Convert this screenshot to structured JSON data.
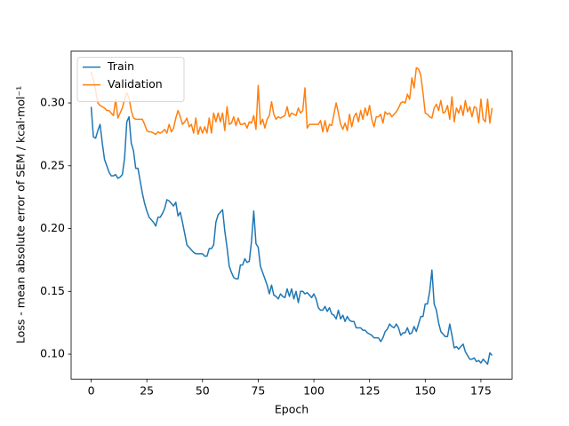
{
  "chart_data": {
    "type": "line",
    "x_label": "Epoch",
    "y_label": "Loss - mean absolute error of SEM / kcal·mol⁻¹",
    "xlim": [
      -9,
      189
    ],
    "ylim": [
      0.0801,
      0.3413
    ],
    "xticks": [
      0,
      25,
      50,
      75,
      100,
      125,
      150,
      175
    ],
    "yticks": [
      {
        "value": 0.1,
        "label": "0.10"
      },
      {
        "value": 0.15,
        "label": "0.15"
      },
      {
        "value": 0.2,
        "label": "0.20"
      },
      {
        "value": 0.25,
        "label": "0.25"
      },
      {
        "value": 0.3,
        "label": "0.30"
      }
    ],
    "legend": "upper left",
    "x": [
      0,
      1,
      2,
      3,
      4,
      5,
      6,
      7,
      8,
      9,
      10,
      11,
      12,
      13,
      14,
      15,
      16,
      17,
      18,
      19,
      20,
      21,
      22,
      23,
      24,
      25,
      26,
      27,
      28,
      29,
      30,
      31,
      32,
      33,
      34,
      35,
      36,
      37,
      38,
      39,
      40,
      41,
      42,
      43,
      44,
      45,
      46,
      47,
      48,
      49,
      50,
      51,
      52,
      53,
      54,
      55,
      56,
      57,
      58,
      59,
      60,
      61,
      62,
      63,
      64,
      65,
      66,
      67,
      68,
      69,
      70,
      71,
      72,
      73,
      74,
      75,
      76,
      77,
      78,
      79,
      80,
      81,
      82,
      83,
      84,
      85,
      86,
      87,
      88,
      89,
      90,
      91,
      92,
      93,
      94,
      95,
      96,
      97,
      98,
      99,
      100,
      101,
      102,
      103,
      104,
      105,
      106,
      107,
      108,
      109,
      110,
      111,
      112,
      113,
      114,
      115,
      116,
      117,
      118,
      119,
      120,
      121,
      122,
      123,
      124,
      125,
      126,
      127,
      128,
      129,
      130,
      131,
      132,
      133,
      134,
      135,
      136,
      137,
      138,
      139,
      140,
      141,
      142,
      143,
      144,
      145,
      146,
      147,
      148,
      149,
      150,
      151,
      152,
      153,
      154,
      155,
      156,
      157,
      158,
      159,
      160,
      161,
      162,
      163,
      164,
      165,
      166,
      167,
      168,
      169,
      170,
      171,
      172,
      173,
      174,
      175,
      176,
      177,
      178,
      179,
      180
    ],
    "series": [
      {
        "name": "Train",
        "color": "#1f77b4",
        "values": [
          0.297,
          0.273,
          0.272,
          0.278,
          0.283,
          0.268,
          0.255,
          0.25,
          0.245,
          0.242,
          0.242,
          0.243,
          0.24,
          0.241,
          0.243,
          0.256,
          0.285,
          0.289,
          0.268,
          0.262,
          0.248,
          0.248,
          0.238,
          0.228,
          0.22,
          0.214,
          0.209,
          0.207,
          0.205,
          0.202,
          0.209,
          0.209,
          0.212,
          0.216,
          0.223,
          0.222,
          0.22,
          0.218,
          0.221,
          0.21,
          0.213,
          0.205,
          0.196,
          0.187,
          0.185,
          0.183,
          0.181,
          0.18,
          0.18,
          0.18,
          0.18,
          0.178,
          0.178,
          0.184,
          0.184,
          0.187,
          0.205,
          0.211,
          0.213,
          0.215,
          0.198,
          0.185,
          0.17,
          0.165,
          0.161,
          0.16,
          0.16,
          0.171,
          0.171,
          0.176,
          0.173,
          0.174,
          0.19,
          0.214,
          0.188,
          0.185,
          0.17,
          0.165,
          0.16,
          0.155,
          0.148,
          0.155,
          0.147,
          0.146,
          0.144,
          0.148,
          0.146,
          0.145,
          0.152,
          0.146,
          0.152,
          0.144,
          0.15,
          0.141,
          0.15,
          0.15,
          0.148,
          0.149,
          0.147,
          0.145,
          0.148,
          0.144,
          0.137,
          0.135,
          0.135,
          0.138,
          0.134,
          0.137,
          0.132,
          0.131,
          0.128,
          0.135,
          0.128,
          0.131,
          0.126,
          0.13,
          0.127,
          0.126,
          0.126,
          0.121,
          0.121,
          0.121,
          0.119,
          0.119,
          0.117,
          0.116,
          0.115,
          0.113,
          0.113,
          0.113,
          0.11,
          0.113,
          0.118,
          0.12,
          0.124,
          0.122,
          0.121,
          0.124,
          0.121,
          0.115,
          0.117,
          0.117,
          0.121,
          0.116,
          0.117,
          0.122,
          0.118,
          0.124,
          0.13,
          0.13,
          0.14,
          0.14,
          0.15,
          0.167,
          0.14,
          0.135,
          0.125,
          0.118,
          0.116,
          0.114,
          0.114,
          0.124,
          0.115,
          0.105,
          0.106,
          0.104,
          0.106,
          0.108,
          0.102,
          0.099,
          0.096,
          0.096,
          0.097,
          0.094,
          0.095,
          0.093,
          0.096,
          0.094,
          0.092,
          0.101,
          0.099
        ]
      },
      {
        "name": "Validation",
        "color": "#ff7f0e",
        "values": [
          0.325,
          0.318,
          0.31,
          0.3,
          0.298,
          0.297,
          0.296,
          0.294,
          0.294,
          0.292,
          0.29,
          0.303,
          0.288,
          0.292,
          0.296,
          0.303,
          0.308,
          0.304,
          0.294,
          0.288,
          0.287,
          0.287,
          0.287,
          0.287,
          0.283,
          0.278,
          0.277,
          0.277,
          0.276,
          0.275,
          0.277,
          0.276,
          0.277,
          0.279,
          0.276,
          0.283,
          0.277,
          0.28,
          0.288,
          0.294,
          0.289,
          0.283,
          0.285,
          0.288,
          0.281,
          0.283,
          0.276,
          0.288,
          0.275,
          0.281,
          0.276,
          0.281,
          0.276,
          0.288,
          0.276,
          0.292,
          0.285,
          0.292,
          0.285,
          0.292,
          0.278,
          0.297,
          0.283,
          0.284,
          0.289,
          0.282,
          0.288,
          0.283,
          0.283,
          0.284,
          0.28,
          0.285,
          0.284,
          0.29,
          0.279,
          0.314,
          0.283,
          0.287,
          0.28,
          0.287,
          0.29,
          0.301,
          0.291,
          0.287,
          0.289,
          0.288,
          0.289,
          0.29,
          0.297,
          0.289,
          0.292,
          0.291,
          0.29,
          0.296,
          0.292,
          0.294,
          0.312,
          0.28,
          0.283,
          0.283,
          0.283,
          0.283,
          0.283,
          0.286,
          0.277,
          0.286,
          0.277,
          0.283,
          0.282,
          0.291,
          0.3,
          0.292,
          0.283,
          0.279,
          0.284,
          0.278,
          0.291,
          0.281,
          0.289,
          0.292,
          0.285,
          0.294,
          0.287,
          0.296,
          0.29,
          0.298,
          0.287,
          0.281,
          0.289,
          0.289,
          0.291,
          0.284,
          0.293,
          0.291,
          0.292,
          0.289,
          0.291,
          0.293,
          0.296,
          0.3,
          0.301,
          0.3,
          0.307,
          0.303,
          0.32,
          0.312,
          0.328,
          0.327,
          0.322,
          0.308,
          0.292,
          0.291,
          0.289,
          0.288,
          0.296,
          0.299,
          0.294,
          0.302,
          0.292,
          0.293,
          0.298,
          0.287,
          0.305,
          0.285,
          0.296,
          0.292,
          0.298,
          0.29,
          0.302,
          0.293,
          0.297,
          0.289,
          0.297,
          0.296,
          0.284,
          0.303,
          0.287,
          0.285,
          0.303,
          0.284,
          0.296
        ]
      }
    ]
  }
}
